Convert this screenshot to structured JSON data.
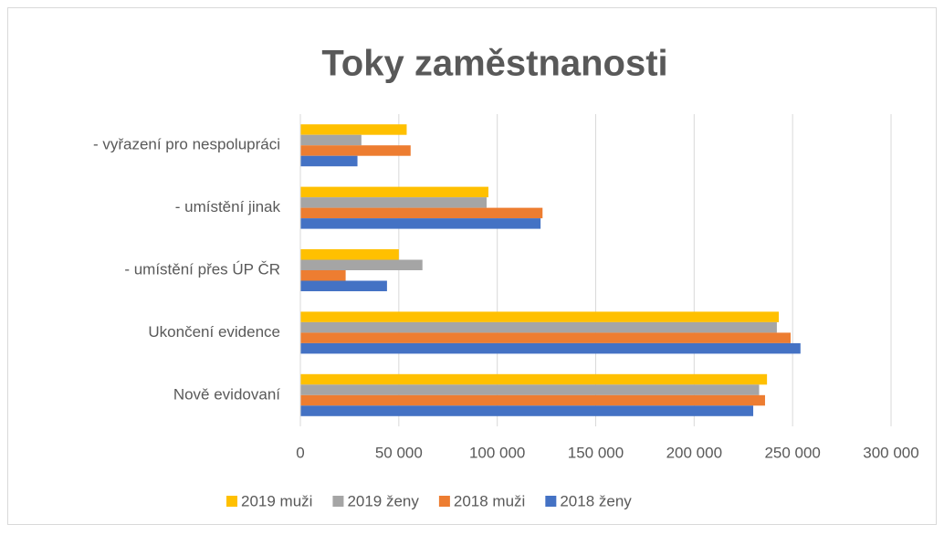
{
  "chart_data": {
    "type": "hbar",
    "title": "Toky zaměstnanosti",
    "categories": [
      "Nově evidovaní",
      "Ukončení evidence",
      "- umístění přes ÚP ČR",
      "- umístění jinak",
      "- vyřazení pro nespolupráci"
    ],
    "series": [
      {
        "name": "2019 muži",
        "color": "#ffc000",
        "values": [
          237000,
          243000,
          50000,
          95500,
          54000
        ]
      },
      {
        "name": "2019 ženy",
        "color": "#a5a5a5",
        "values": [
          233000,
          242000,
          62000,
          94600,
          31000
        ]
      },
      {
        "name": "2018 muži",
        "color": "#ed7d31",
        "values": [
          236000,
          249000,
          23000,
          123000,
          56000
        ]
      },
      {
        "name": "2018 ženy",
        "color": "#4472c4",
        "values": [
          230000,
          254000,
          44000,
          122000,
          29000
        ]
      }
    ],
    "xlim": [
      0,
      300000
    ],
    "xticks": [
      0,
      {
        "value": 50000,
        "label": "50 000"
      },
      {
        "value": 100000,
        "label": "100 000"
      },
      {
        "value": 150000,
        "label": "150 000"
      },
      {
        "value": 200000,
        "label": "200 000"
      },
      {
        "value": 250000,
        "label": "250 000"
      },
      {
        "value": 300000,
        "label": "300 000"
      }
    ],
    "grid": true
  }
}
